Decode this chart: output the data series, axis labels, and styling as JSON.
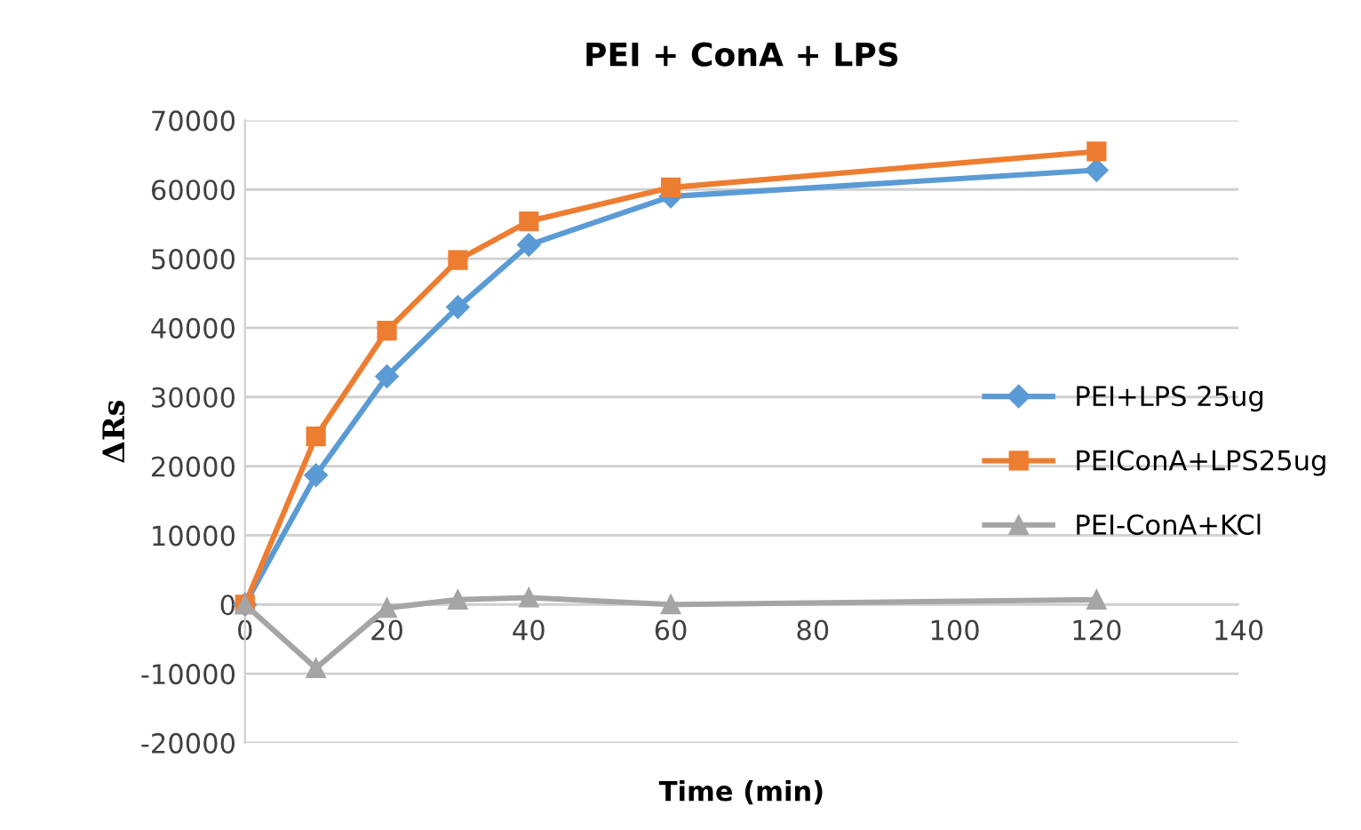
{
  "chart_data": {
    "type": "line",
    "title": "PEI + ConA + LPS",
    "xlabel": "Time (min)",
    "ylabel": "ΔRs",
    "x": [
      0,
      10,
      20,
      30,
      40,
      60,
      120
    ],
    "series": [
      {
        "name": "PEI+LPS 25ug",
        "color": "#5b9bd5",
        "marker": "diamond",
        "values": [
          0,
          18700,
          33000,
          43000,
          52000,
          59000,
          62800
        ]
      },
      {
        "name": "PEIConA+LPS25ug",
        "color": "#ed7d31",
        "marker": "square",
        "values": [
          0,
          24300,
          39600,
          49800,
          55400,
          60300,
          65500
        ]
      },
      {
        "name": "PEI-ConA+KCl",
        "color": "#a5a5a5",
        "marker": "triangle",
        "values": [
          0,
          -9200,
          -500,
          700,
          1000,
          0,
          700
        ]
      }
    ],
    "xlim": [
      0,
      140
    ],
    "xticks": [
      0,
      20,
      40,
      60,
      80,
      100,
      120,
      140
    ],
    "ylim": [
      -20000,
      70000
    ],
    "yticks": [
      -20000,
      -10000,
      0,
      10000,
      20000,
      30000,
      40000,
      50000,
      60000,
      70000
    ],
    "grid": "y",
    "legend": "right",
    "line_style": "solid"
  }
}
